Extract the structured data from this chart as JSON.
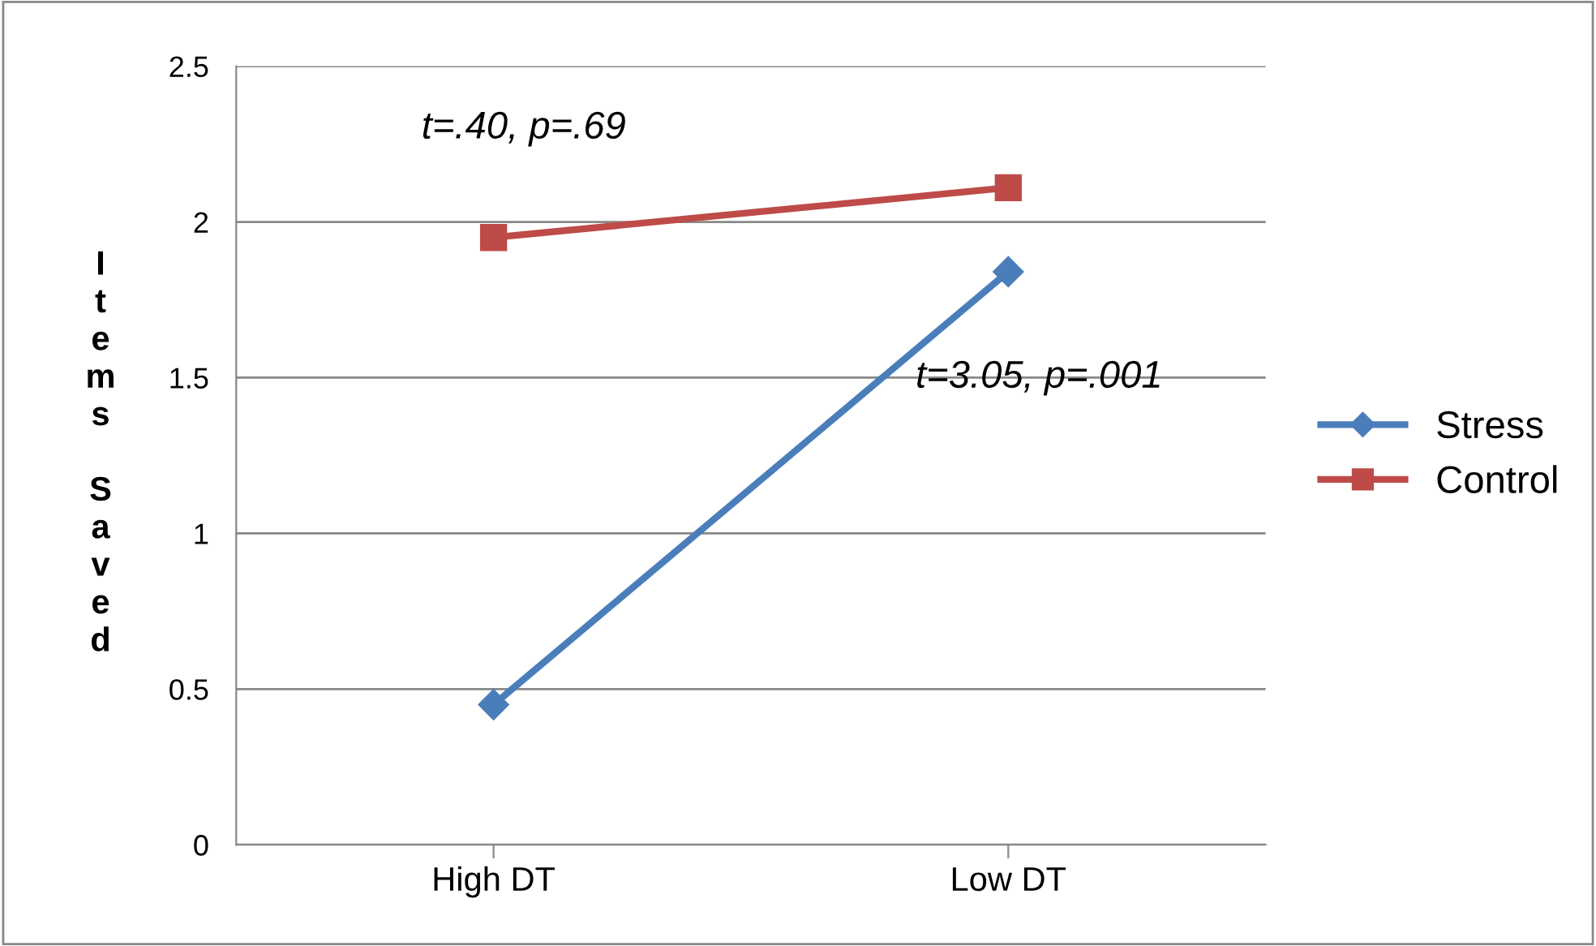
{
  "chart_data": {
    "type": "line",
    "ylabel": "Items Saved",
    "categories": [
      "High DT",
      "Low DT"
    ],
    "series": [
      {
        "name": "Stress",
        "color": "#4a7ebb",
        "marker": "diamond",
        "values": [
          0.45,
          1.84
        ]
      },
      {
        "name": "Control",
        "color": "#be4b48",
        "marker": "square",
        "values": [
          1.95,
          2.11
        ]
      }
    ],
    "ylim": [
      0,
      2.5
    ],
    "yticks": [
      0,
      0.5,
      1,
      1.5,
      2,
      2.5
    ],
    "grid": "y",
    "legend": "right",
    "line_style": "solid",
    "annotations": [
      "t=.40, p=.69",
      "t=3.05, p=.001"
    ]
  }
}
